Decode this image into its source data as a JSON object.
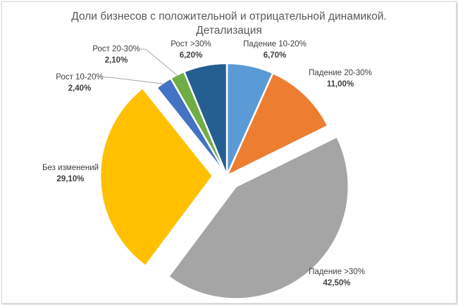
{
  "chart_data": {
    "type": "pie",
    "title_line1": "Доли бизнесов с положительной и отрицательной динамикой.",
    "title_line2": "Детализация",
    "slices": [
      {
        "label": "Падение 10-20%",
        "value": 6.7,
        "value_label": "6,70%",
        "color": "#5B9BD5",
        "exploded": false
      },
      {
        "label": "Падение 20-30%",
        "value": 11.0,
        "value_label": "11,00%",
        "color": "#ED7D31",
        "exploded": false
      },
      {
        "label": "Падение >30%",
        "value": 42.5,
        "value_label": "42,50%",
        "color": "#A5A5A5",
        "exploded": true
      },
      {
        "label": "Без изменений",
        "value": 29.1,
        "value_label": "29,10%",
        "color": "#FFC000",
        "exploded": true
      },
      {
        "label": "Рост 10-20%",
        "value": 2.4,
        "value_label": "2,40%",
        "color": "#4472C4",
        "exploded": false
      },
      {
        "label": "Рост 20-30%",
        "value": 2.1,
        "value_label": "2,10%",
        "color": "#70AD47",
        "exploded": false
      },
      {
        "label": "Рост >30%",
        "value": 6.2,
        "value_label": "6,20%",
        "color": "#255E91",
        "exploded": false
      }
    ]
  }
}
